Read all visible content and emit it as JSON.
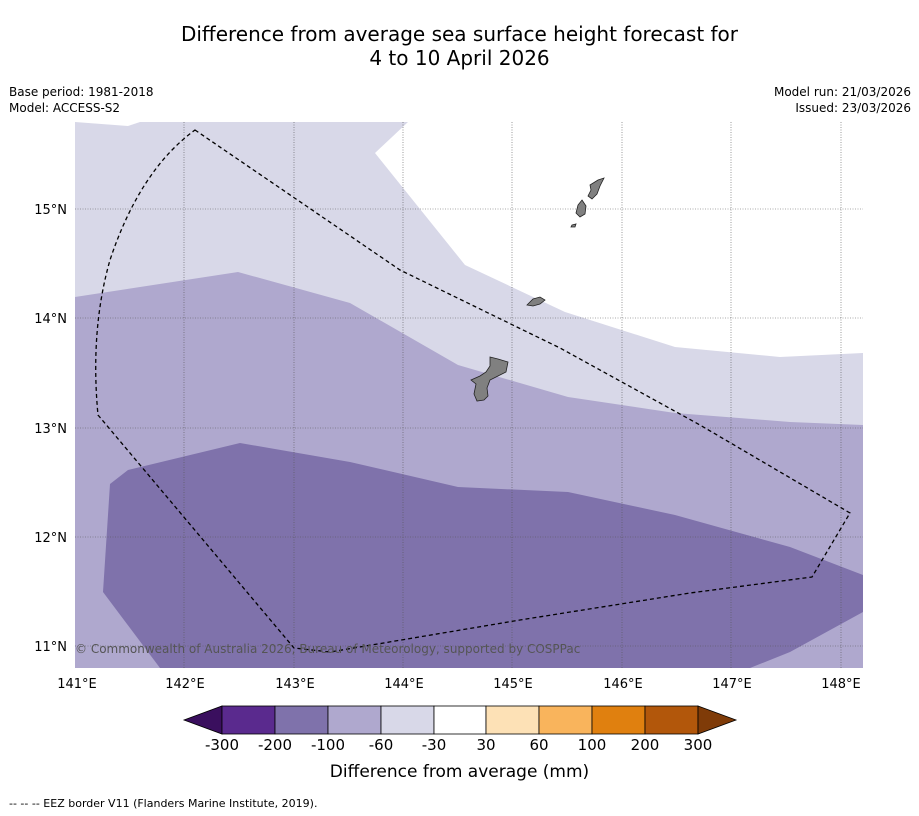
{
  "title": {
    "line1": "Difference from average sea surface height forecast for",
    "line2": "4 to 10 April 2026"
  },
  "meta": {
    "base_period": "Base period: 1981-2018",
    "model": "Model: ACCESS-S2",
    "model_run": "Model run: 21/03/2026",
    "issued": "Issued: 23/03/2026"
  },
  "map": {
    "lon_range": [
      141.0,
      148.2
    ],
    "lat_range": [
      10.8,
      15.8
    ],
    "x_ticks": [
      "141°E",
      "142°E",
      "143°E",
      "144°E",
      "145°E",
      "146°E",
      "147°E",
      "148°E"
    ],
    "y_ticks": [
      "15°N",
      "14°N",
      "13°N",
      "12°N",
      "11°N"
    ],
    "copyright": "© Commonwealth of Australia 2026, Bureau of Meteorology, supported by COSPPac",
    "colors": {
      "band_minus30_to_minus60": "#d8d8e8",
      "band_minus60_to_minus100": "#afa8ce",
      "band_minus100_to_minus200": "#7f72ab",
      "land": "#808080"
    }
  },
  "colorbar": {
    "labels": [
      "-300",
      "-200",
      "-100",
      "-60",
      "-30",
      "30",
      "60",
      "100",
      "200",
      "300"
    ],
    "colors": [
      "#3a0f5e",
      "#5a2a8e",
      "#7f72ab",
      "#afa8ce",
      "#d8d8e8",
      "#ffffff",
      "#fde1b6",
      "#f9b45c",
      "#e0800f",
      "#b2570b",
      "#7f3b08"
    ],
    "title": "Difference from average (mm)"
  },
  "footnote": "--  --  -- EEZ border V11 (Flanders Marine Institute, 2019)."
}
